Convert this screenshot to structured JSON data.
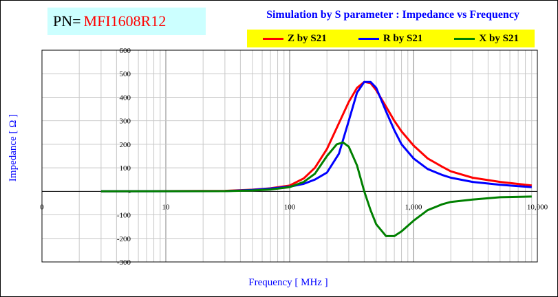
{
  "pn": {
    "label": "PN=",
    "value": "MFI1608R12"
  },
  "chart_data": {
    "type": "line",
    "title": "Simulation by S parameter : Impedance vs Frequency",
    "xlabel": "Frequency [ MHz ]",
    "ylabel": "Impedance [ Ω ]",
    "xscale": "log",
    "xlim": [
      1,
      10000
    ],
    "ylim": [
      -300,
      600
    ],
    "yticks": [
      -300,
      -200,
      -100,
      0,
      100,
      200,
      300,
      400,
      500,
      600
    ],
    "ytick_labels": [
      "-300",
      "-200",
      "-100",
      "-",
      "100",
      "200",
      "300",
      "400",
      "500",
      "600"
    ],
    "xticks": [
      1,
      10,
      100,
      1000,
      10000
    ],
    "xtick_labels": [
      "0",
      "10",
      "100",
      "1,000",
      "10,000"
    ],
    "grid": true,
    "legend_position": "top-right",
    "series": [
      {
        "name": "Z by S21",
        "color": "#ff0000",
        "x": [
          3,
          30,
          50,
          70,
          100,
          130,
          160,
          200,
          250,
          300,
          350,
          400,
          450,
          500,
          600,
          700,
          800,
          1000,
          1300,
          1700,
          2000,
          3000,
          5000,
          9000
        ],
        "y": [
          0,
          2,
          7,
          13,
          25,
          55,
          100,
          180,
          290,
          380,
          440,
          465,
          460,
          430,
          360,
          300,
          255,
          195,
          140,
          105,
          85,
          58,
          40,
          25
        ]
      },
      {
        "name": "R by S21",
        "color": "#0000ff",
        "x": [
          3,
          30,
          50,
          70,
          100,
          130,
          160,
          200,
          250,
          300,
          350,
          400,
          450,
          500,
          600,
          700,
          800,
          1000,
          1300,
          1700,
          2000,
          3000,
          5000,
          9000
        ],
        "y": [
          0,
          1,
          6,
          12,
          20,
          32,
          50,
          80,
          160,
          300,
          420,
          465,
          465,
          440,
          340,
          260,
          200,
          140,
          95,
          70,
          58,
          40,
          28,
          18
        ]
      },
      {
        "name": "X by S21",
        "color": "#008000",
        "x": [
          3,
          30,
          50,
          70,
          100,
          130,
          160,
          200,
          240,
          270,
          300,
          350,
          400,
          450,
          500,
          600,
          700,
          800,
          1000,
          1300,
          1700,
          2000,
          3000,
          5000,
          9000
        ],
        "y": [
          0,
          1,
          4,
          8,
          18,
          40,
          75,
          150,
          200,
          208,
          190,
          110,
          0,
          -80,
          -140,
          -190,
          -190,
          -170,
          -125,
          -80,
          -55,
          -45,
          -35,
          -25,
          -22
        ]
      }
    ]
  }
}
